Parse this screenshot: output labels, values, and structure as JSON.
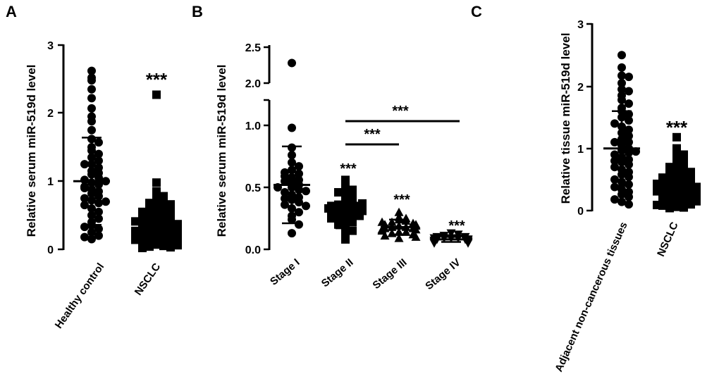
{
  "chart_data": [
    {
      "panel": "A",
      "type": "scatter",
      "ylabel": "Relative serum miR-519d level",
      "ylim": [
        0,
        3
      ],
      "yticks": [
        "0",
        "1",
        "2",
        "3"
      ],
      "categories": [
        "Healthy control",
        "NSCLC"
      ],
      "series": [
        {
          "name": "Healthy control",
          "marker": "circle",
          "mean": 1.0,
          "sd_low": 0.36,
          "sd_high": 1.64,
          "values": [
            2.62,
            2.48,
            2.35,
            2.52,
            2.22,
            2.07,
            1.95,
            1.88,
            1.75,
            1.62,
            1.57,
            1.5,
            1.45,
            1.4,
            1.35,
            1.3,
            1.25,
            1.2,
            1.15,
            1.1,
            1.05,
            1.02,
            0.98,
            0.95,
            0.92,
            0.88,
            0.85,
            0.82,
            0.78,
            0.75,
            0.72,
            0.68,
            0.65,
            0.6,
            0.55,
            0.5,
            0.45,
            0.4,
            0.35,
            0.3,
            0.25,
            0.2,
            0.15,
            1.0,
            0.9,
            1.25,
            0.7,
            0.33,
            0.18,
            1.12
          ]
        },
        {
          "name": "NSCLC",
          "marker": "square",
          "mean": 0.38,
          "sd_low": 0.1,
          "sd_high": 0.66,
          "values": [
            2.27,
            0.98,
            0.85,
            0.82,
            0.78,
            0.72,
            0.7,
            0.68,
            0.66,
            0.63,
            0.6,
            0.58,
            0.55,
            0.52,
            0.5,
            0.48,
            0.46,
            0.44,
            0.42,
            0.4,
            0.38,
            0.36,
            0.35,
            0.33,
            0.31,
            0.3,
            0.28,
            0.26,
            0.25,
            0.23,
            0.21,
            0.2,
            0.18,
            0.17,
            0.15,
            0.13,
            0.12,
            0.1,
            0.08,
            0.07,
            0.05,
            0.04,
            0.03,
            0.02,
            0.45,
            0.37,
            0.22,
            0.14,
            0.09,
            0.3,
            0.55,
            0.27,
            0.19,
            0.41,
            0.06
          ]
        }
      ],
      "annotations": [
        {
          "text": "***",
          "category": "NSCLC",
          "y": 2.55
        }
      ]
    },
    {
      "panel": "B",
      "type": "scatter",
      "ylabel": "Relative serum miR-519d level",
      "axis_break": [
        1.15,
        1.85
      ],
      "yticks": [
        "0.0",
        "0.5",
        "1.0",
        "2.0",
        "2.5"
      ],
      "categories": [
        "Stage I",
        "Stage II",
        "Stage III",
        "Stage IV"
      ],
      "series": [
        {
          "name": "Stage I",
          "marker": "circle",
          "mean": 0.52,
          "sd_low": 0.21,
          "sd_high": 0.83,
          "values": [
            2.28,
            0.98,
            0.82,
            0.76,
            0.7,
            0.67,
            0.64,
            0.61,
            0.58,
            0.56,
            0.54,
            0.52,
            0.5,
            0.48,
            0.46,
            0.44,
            0.42,
            0.4,
            0.38,
            0.36,
            0.33,
            0.3,
            0.27,
            0.24,
            0.2,
            0.13,
            0.59,
            0.47,
            0.35,
            0.62,
            0.41,
            0.5,
            0.55
          ]
        },
        {
          "name": "Stage II",
          "marker": "square",
          "mean": 0.32,
          "sd_low": 0.17,
          "sd_high": 0.47,
          "values": [
            0.56,
            0.52,
            0.5,
            0.48,
            0.46,
            0.44,
            0.42,
            0.4,
            0.38,
            0.36,
            0.35,
            0.34,
            0.33,
            0.32,
            0.31,
            0.3,
            0.29,
            0.28,
            0.26,
            0.24,
            0.22,
            0.2,
            0.18,
            0.15,
            0.12,
            0.08,
            0.35,
            0.27,
            0.37,
            0.31,
            0.25,
            0.33
          ]
        },
        {
          "name": "Stage III",
          "marker": "triangle",
          "mean": 0.18,
          "sd_low": 0.12,
          "sd_high": 0.24,
          "values": [
            0.3,
            0.26,
            0.25,
            0.24,
            0.23,
            0.22,
            0.21,
            0.2,
            0.2,
            0.19,
            0.18,
            0.18,
            0.17,
            0.17,
            0.16,
            0.15,
            0.14,
            0.14,
            0.13,
            0.12,
            0.11,
            0.1,
            0.09,
            0.19,
            0.16,
            0.22
          ]
        },
        {
          "name": "Stage IV",
          "marker": "inverted-triangle",
          "mean": 0.08,
          "sd_low": 0.06,
          "sd_high": 0.1,
          "values": [
            0.13,
            0.12,
            0.11,
            0.1,
            0.1,
            0.09,
            0.09,
            0.09,
            0.08,
            0.08,
            0.08,
            0.07,
            0.07,
            0.07,
            0.06,
            0.06,
            0.05,
            0.05,
            0.08,
            0.09
          ]
        }
      ],
      "annotations": [
        {
          "text": "***",
          "category": "Stage II",
          "y": 0.63
        },
        {
          "text": "***",
          "category": "Stage III",
          "y": 0.38
        },
        {
          "text": "***",
          "category": "Stage IV",
          "y": 0.17
        }
      ],
      "brackets": [
        {
          "from": "Stage II",
          "to": "Stage III",
          "y": 0.89,
          "text": "***"
        },
        {
          "from": "Stage II",
          "to": "Stage IV",
          "y": 1.09,
          "text": "***"
        }
      ]
    },
    {
      "panel": "C",
      "type": "scatter",
      "ylabel": "Relative tissue miR-519d level",
      "ylim": [
        0,
        3
      ],
      "yticks": [
        "0",
        "1",
        "2",
        "3"
      ],
      "categories": [
        "Adjacent non-cancerous tissues",
        "NSCLC"
      ],
      "series": [
        {
          "name": "Adjacent non-cancerous tissues",
          "marker": "circle",
          "mean": 1.0,
          "sd_low": 0.4,
          "sd_high": 1.6,
          "values": [
            2.5,
            2.3,
            2.17,
            2.15,
            2.05,
            1.95,
            1.92,
            1.85,
            1.78,
            1.72,
            1.65,
            1.6,
            1.55,
            1.5,
            1.45,
            1.4,
            1.35,
            1.3,
            1.25,
            1.2,
            1.15,
            1.1,
            1.05,
            1.0,
            0.97,
            0.93,
            0.9,
            0.86,
            0.82,
            0.78,
            0.74,
            0.7,
            0.66,
            0.62,
            0.58,
            0.54,
            0.5,
            0.46,
            0.42,
            0.38,
            0.34,
            0.3,
            0.26,
            0.22,
            0.18,
            0.14,
            0.1,
            0.95,
            1.1,
            0.8
          ]
        },
        {
          "name": "NSCLC",
          "marker": "square",
          "mean": 0.38,
          "sd_low": 0.1,
          "sd_high": 0.66,
          "values": [
            1.18,
            1.0,
            0.95,
            0.9,
            0.85,
            0.8,
            0.75,
            0.72,
            0.7,
            0.67,
            0.64,
            0.61,
            0.58,
            0.55,
            0.52,
            0.5,
            0.48,
            0.46,
            0.44,
            0.42,
            0.4,
            0.38,
            0.36,
            0.34,
            0.32,
            0.3,
            0.28,
            0.26,
            0.24,
            0.22,
            0.2,
            0.18,
            0.16,
            0.14,
            0.12,
            0.1,
            0.08,
            0.06,
            0.05,
            0.04,
            0.35,
            0.43,
            0.27,
            0.15,
            0.53,
            0.31,
            0.09,
            0.62
          ]
        }
      ],
      "annotations": [
        {
          "text": "***",
          "category": "NSCLC",
          "y": 1.35
        }
      ]
    }
  ]
}
